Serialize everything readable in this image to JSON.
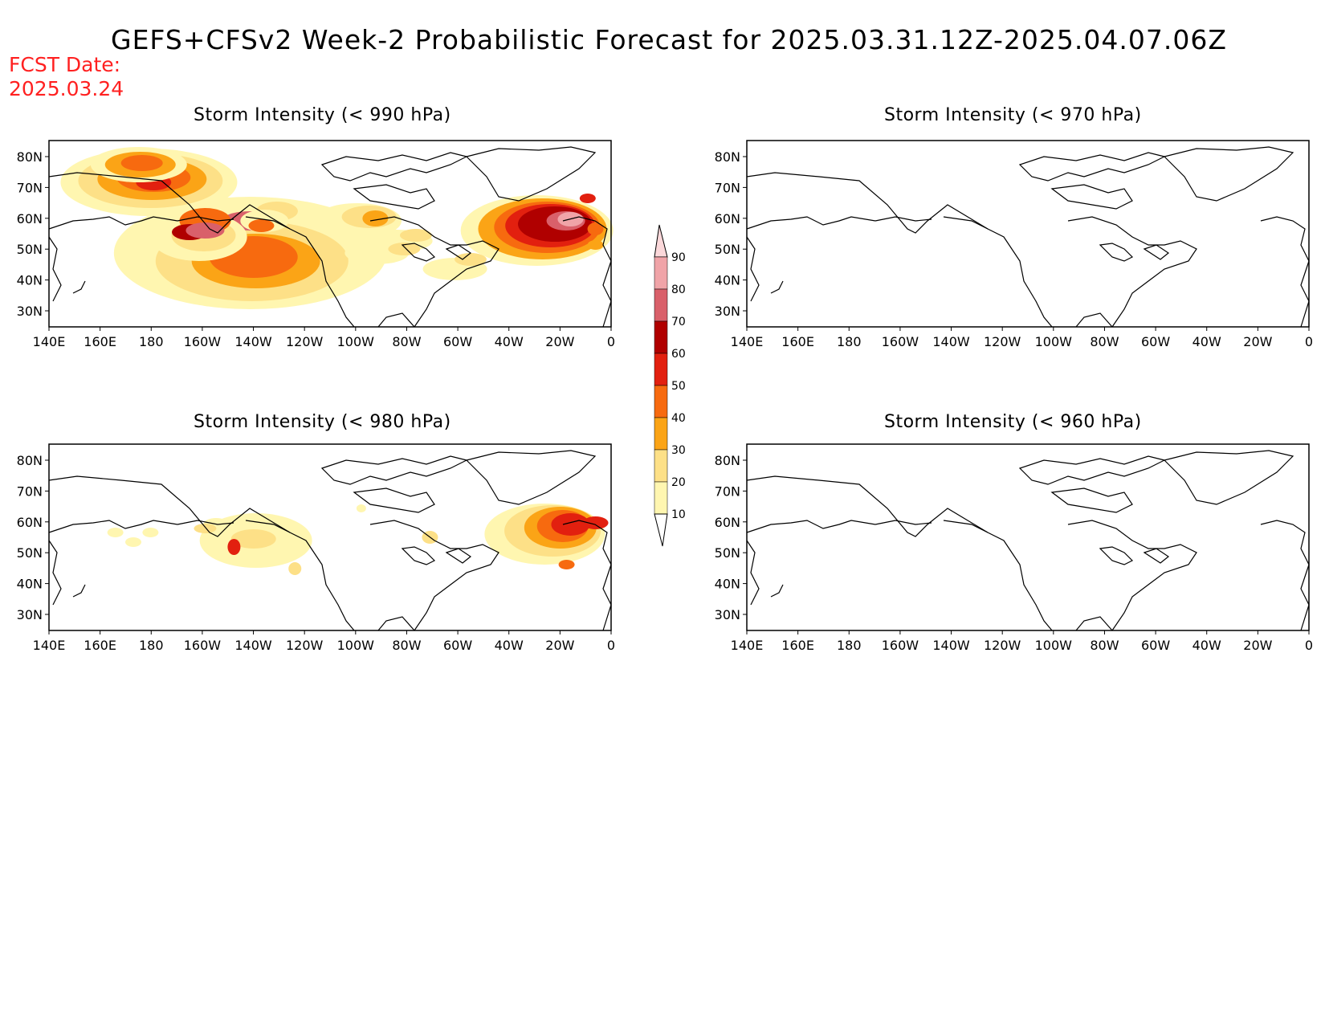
{
  "header": {
    "title": "GEFS+CFSv2 Week-2 Probabilistic Forecast for 2025.03.31.12Z-2025.04.07.06Z",
    "fcst_label": "FCST Date:",
    "fcst_date": "2025.03.24"
  },
  "panels": [
    {
      "id": "p990",
      "title": "Storm Intensity (< 990 hPa)"
    },
    {
      "id": "p970",
      "title": "Storm Intensity (< 970 hPa)"
    },
    {
      "id": "p980",
      "title": "Storm Intensity (< 980 hPa)"
    },
    {
      "id": "p960",
      "title": "Storm Intensity (< 960 hPa)"
    }
  ],
  "axes": {
    "lat_labels": [
      "80N",
      "70N",
      "60N",
      "50N",
      "40N",
      "30N"
    ],
    "lon_labels": [
      "140E",
      "160E",
      "180",
      "160W",
      "140W",
      "120W",
      "100W",
      "80W",
      "60W",
      "40W",
      "20W",
      "0"
    ]
  },
  "colorbar": {
    "levels": [
      "10",
      "20",
      "30",
      "40",
      "50",
      "60",
      "70",
      "80",
      "90"
    ],
    "colors": [
      "#fff6b0",
      "#fde087",
      "#fba416",
      "#f76a0f",
      "#e2200f",
      "#b00000",
      "#d9606a",
      "#f0a4a8",
      "#fbd8da"
    ]
  }
}
